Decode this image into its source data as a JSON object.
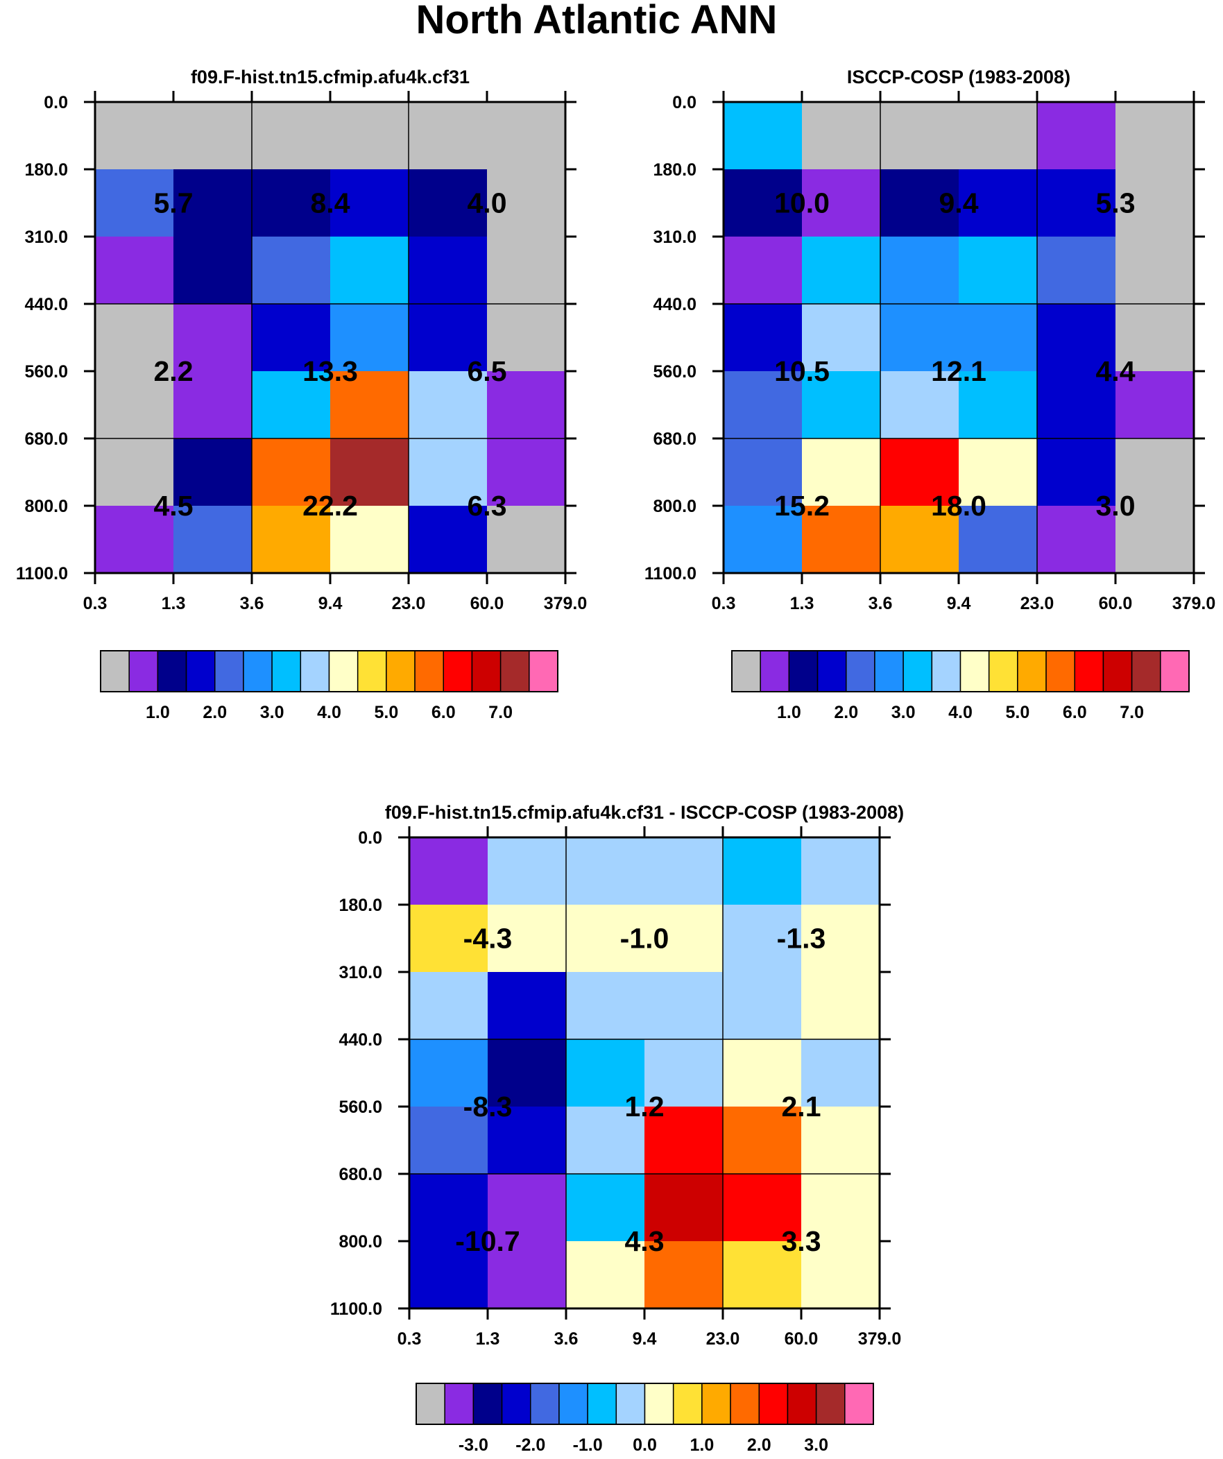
{
  "title": "North Atlantic ANN",
  "colors": [
    "#c0c0c0",
    "#8a2be2",
    "#00008b",
    "#0000cd",
    "#4169e1",
    "#1e90ff",
    "#00bfff",
    "#a4d3ff",
    "#ffffc8",
    "#ffe135",
    "#ffaa00",
    "#ff6a00",
    "#ff0000",
    "#cd0000",
    "#a52a2a",
    "#ff69b4"
  ],
  "chart_data": [
    {
      "type": "heatmap",
      "title": "f09.F-hist.tn15.cfmip.afu4k.cf31",
      "x_ticks": [
        "0.3",
        "1.3",
        "3.6",
        "9.4",
        "23.0",
        "60.0",
        "379.0"
      ],
      "y_ticks": [
        "0.0",
        "180.0",
        "310.0",
        "440.0",
        "560.0",
        "680.0",
        "800.0",
        "1100.0"
      ],
      "cells": [
        [
          0,
          0,
          0,
          0,
          0,
          0
        ],
        [
          4,
          2,
          2,
          3,
          2,
          0
        ],
        [
          1,
          2,
          4,
          6,
          3,
          0
        ],
        [
          0,
          1,
          3,
          5,
          3,
          0
        ],
        [
          0,
          1,
          6,
          11,
          7,
          1
        ],
        [
          0,
          2,
          11,
          14,
          7,
          1
        ],
        [
          1,
          4,
          10,
          8,
          3,
          0
        ]
      ],
      "box_values": [
        [
          "5.7",
          "8.4",
          "4.0"
        ],
        [
          "2.2",
          "13.3",
          "6.5"
        ],
        [
          "4.5",
          "22.2",
          "6.3"
        ]
      ],
      "colorbar": {
        "labels": [
          "1.0",
          "2.0",
          "3.0",
          "4.0",
          "5.0",
          "6.0",
          "7.0"
        ]
      }
    },
    {
      "type": "heatmap",
      "title": "ISCCP-COSP (1983-2008)",
      "x_ticks": [
        "0.3",
        "1.3",
        "3.6",
        "9.4",
        "23.0",
        "60.0",
        "379.0"
      ],
      "y_ticks": [
        "0.0",
        "180.0",
        "310.0",
        "440.0",
        "560.0",
        "680.0",
        "800.0",
        "1100.0"
      ],
      "cells": [
        [
          6,
          0,
          0,
          0,
          1,
          0
        ],
        [
          2,
          1,
          2,
          3,
          3,
          0
        ],
        [
          1,
          6,
          5,
          6,
          4,
          0
        ],
        [
          3,
          7,
          5,
          5,
          3,
          0
        ],
        [
          4,
          6,
          7,
          6,
          3,
          1
        ],
        [
          4,
          8,
          12,
          8,
          3,
          0
        ],
        [
          5,
          11,
          10,
          4,
          1,
          0
        ]
      ],
      "box_values": [
        [
          "10.0",
          "9.4",
          "5.3"
        ],
        [
          "10.5",
          "12.1",
          "4.4"
        ],
        [
          "15.2",
          "18.0",
          "3.0"
        ]
      ],
      "colorbar": {
        "labels": [
          "1.0",
          "2.0",
          "3.0",
          "4.0",
          "5.0",
          "6.0",
          "7.0"
        ]
      }
    },
    {
      "type": "heatmap",
      "title": "f09.F-hist.tn15.cfmip.afu4k.cf31 - ISCCP-COSP (1983-2008)",
      "x_ticks": [
        "0.3",
        "1.3",
        "3.6",
        "9.4",
        "23.0",
        "60.0",
        "379.0"
      ],
      "y_ticks": [
        "0.0",
        "180.0",
        "310.0",
        "440.0",
        "560.0",
        "680.0",
        "800.0",
        "1100.0"
      ],
      "cells": [
        [
          1,
          7,
          7,
          7,
          6,
          7
        ],
        [
          9,
          8,
          8,
          8,
          7,
          8
        ],
        [
          7,
          3,
          7,
          7,
          7,
          8
        ],
        [
          5,
          2,
          6,
          7,
          8,
          7
        ],
        [
          4,
          3,
          7,
          12,
          11,
          8
        ],
        [
          3,
          1,
          6,
          13,
          12,
          8
        ],
        [
          3,
          1,
          8,
          11,
          9,
          8
        ]
      ],
      "box_values": [
        [
          "-4.3",
          "-1.0",
          "-1.3"
        ],
        [
          "-8.3",
          "1.2",
          "2.1"
        ],
        [
          "-10.7",
          "4.3",
          "3.3"
        ]
      ],
      "colorbar": {
        "labels": [
          "-3.0",
          "-2.0",
          "-1.0",
          "0.0",
          "1.0",
          "2.0",
          "3.0"
        ]
      }
    }
  ]
}
